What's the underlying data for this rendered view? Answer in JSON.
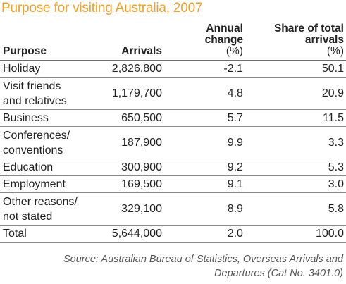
{
  "title": "Purpose for visiting Australia, 2007",
  "columns": {
    "purpose": "Purpose",
    "arrivals": "Arrivals",
    "change_line1": "Annual",
    "change_line2": "change",
    "change_unit": "(%)",
    "share_line1": "Share of total",
    "share_line2": "arrivals",
    "share_unit": "(%)"
  },
  "rows": [
    {
      "purpose_line1": "Holiday",
      "purpose_line2": "",
      "arrivals": "2,826,800",
      "change": "-2.1",
      "share": "50.1"
    },
    {
      "purpose_line1": "Visit friends",
      "purpose_line2": "and relatives",
      "arrivals": "1,179,700",
      "change": "4.8",
      "share": "20.9"
    },
    {
      "purpose_line1": "Business",
      "purpose_line2": "",
      "arrivals": "650,500",
      "change": "5.7",
      "share": "11.5"
    },
    {
      "purpose_line1": "Conferences/",
      "purpose_line2": "conventions",
      "arrivals": "187,900",
      "change": "9.9",
      "share": "3.3"
    },
    {
      "purpose_line1": "Education",
      "purpose_line2": "",
      "arrivals": "300,900",
      "change": "9.2",
      "share": "5.3"
    },
    {
      "purpose_line1": "Employment",
      "purpose_line2": "",
      "arrivals": "169,500",
      "change": "9.1",
      "share": "3.0"
    },
    {
      "purpose_line1": "Other reasons/",
      "purpose_line2": "not stated",
      "arrivals": "329,100",
      "change": "8.9",
      "share": "5.8"
    },
    {
      "purpose_line1": "Total",
      "purpose_line2": "",
      "arrivals": "5,644,000",
      "change": "2.0",
      "share": "100.0"
    }
  ],
  "source_line1": "Source: Australian Bureau of Statistics, Overseas Arrivals and",
  "source_line2": "Departures (Cat No. 3401.0)",
  "colors": {
    "title": "#f0a026",
    "rule": "#8a8a8a"
  }
}
